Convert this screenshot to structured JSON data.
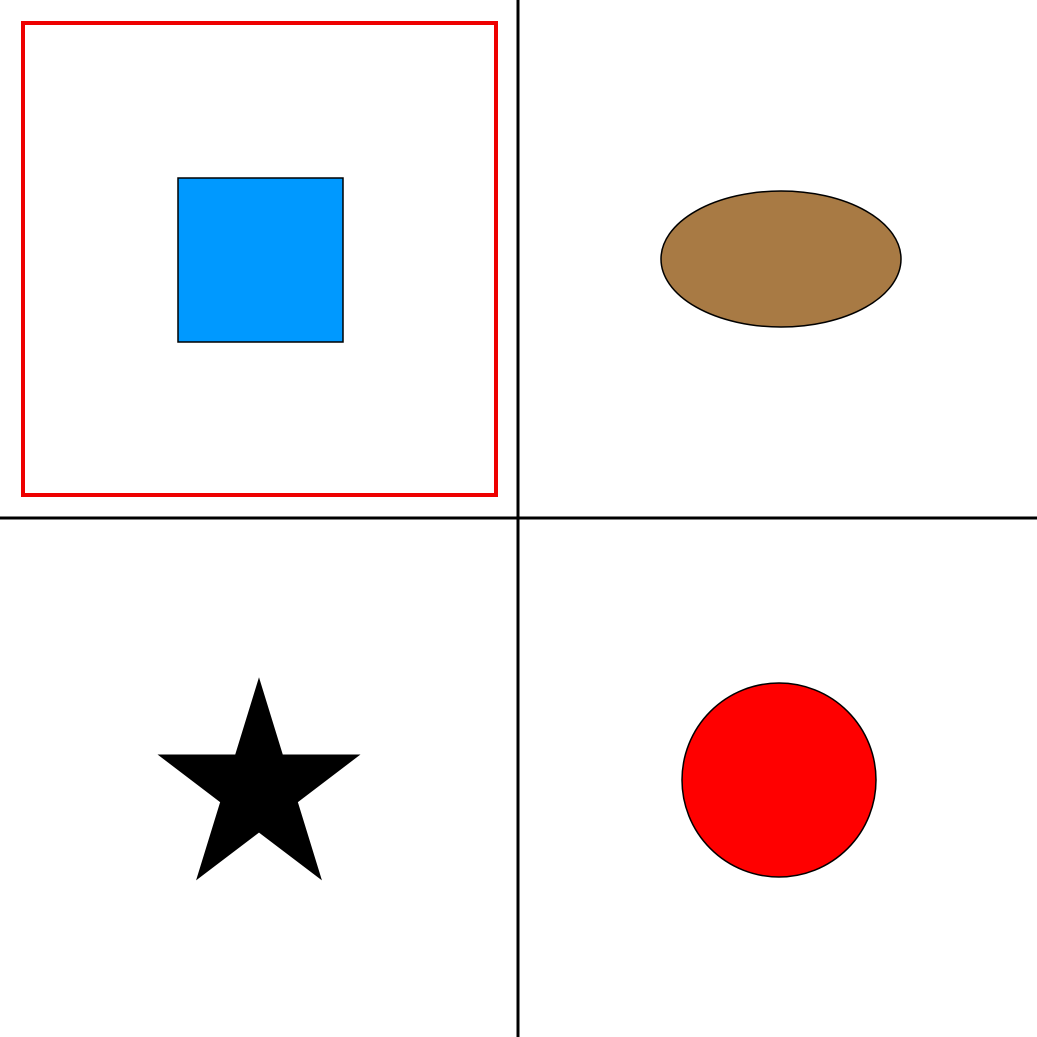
{
  "grid": {
    "rows": 2,
    "columns": 2,
    "divider_color": "#000000"
  },
  "selection": {
    "selected_cell": "top-left",
    "highlight_color": "#ee0000"
  },
  "cells": [
    {
      "position": "top-left",
      "shape": "square",
      "fill": "#0099ff",
      "stroke": "#000000",
      "selected": true
    },
    {
      "position": "top-right",
      "shape": "ellipse",
      "fill": "#a87a44",
      "stroke": "#000000",
      "selected": false
    },
    {
      "position": "bottom-left",
      "shape": "star",
      "fill": "#000000",
      "stroke": "#000000",
      "selected": false
    },
    {
      "position": "bottom-right",
      "shape": "circle",
      "fill": "#ff0000",
      "stroke": "#000000",
      "selected": false
    }
  ]
}
